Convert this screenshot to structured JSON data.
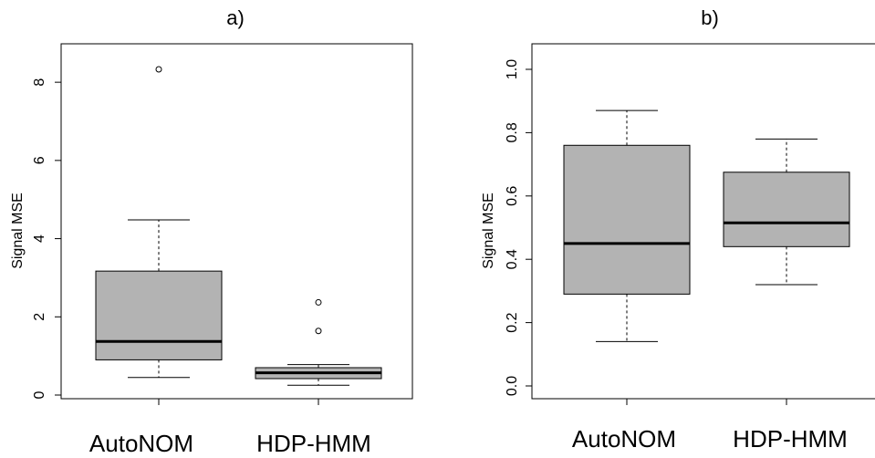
{
  "chart_data": [
    {
      "type": "box",
      "title": "a)",
      "ylabel": "Signal MSE",
      "xlabel": "",
      "categories": [
        "AutoNOM",
        "HDP-HMM"
      ],
      "ylim": [
        0,
        8.8
      ],
      "yticks": [
        0,
        2,
        4,
        6,
        8
      ],
      "ytick_labels": [
        "0",
        "2",
        "4",
        "6",
        "8"
      ],
      "boxes": [
        {
          "name": "AutoNOM",
          "whisker_low": 0.45,
          "q1": 0.9,
          "median": 1.37,
          "q3": 3.17,
          "whisker_high": 4.48,
          "outliers": [
            8.33
          ]
        },
        {
          "name": "HDP-HMM",
          "whisker_low": 0.25,
          "q1": 0.42,
          "median": 0.57,
          "q3": 0.7,
          "whisker_high": 0.78,
          "outliers": [
            2.37,
            1.64
          ]
        }
      ],
      "grid": false,
      "box_fill": "#b3b3b3"
    },
    {
      "type": "box",
      "title": "b)",
      "ylabel": "Signal MSE",
      "xlabel": "",
      "categories": [
        "AutoNOM",
        "HDP-HMM"
      ],
      "ylim": [
        0,
        1.0
      ],
      "yticks": [
        0.0,
        0.2,
        0.4,
        0.6,
        0.8,
        1.0
      ],
      "ytick_labels": [
        "0.0",
        "0.2",
        "0.4",
        "0.6",
        "0.8",
        "1.0"
      ],
      "boxes": [
        {
          "name": "AutoNOM",
          "whisker_low": 0.14,
          "q1": 0.29,
          "median": 0.45,
          "q3": 0.76,
          "whisker_high": 0.87,
          "outliers": []
        },
        {
          "name": "HDP-HMM",
          "whisker_low": 0.32,
          "q1": 0.44,
          "median": 0.515,
          "q3": 0.675,
          "whisker_high": 0.78,
          "outliers": []
        }
      ],
      "grid": false,
      "box_fill": "#b3b3b3"
    }
  ]
}
